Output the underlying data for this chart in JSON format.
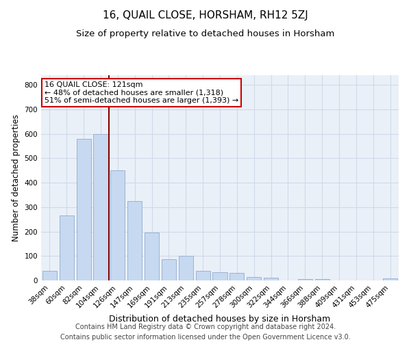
{
  "title": "16, QUAIL CLOSE, HORSHAM, RH12 5ZJ",
  "subtitle": "Size of property relative to detached houses in Horsham",
  "xlabel": "Distribution of detached houses by size in Horsham",
  "ylabel": "Number of detached properties",
  "categories": [
    "38sqm",
    "60sqm",
    "82sqm",
    "104sqm",
    "126sqm",
    "147sqm",
    "169sqm",
    "191sqm",
    "213sqm",
    "235sqm",
    "257sqm",
    "278sqm",
    "300sqm",
    "322sqm",
    "344sqm",
    "366sqm",
    "388sqm",
    "409sqm",
    "431sqm",
    "453sqm",
    "475sqm"
  ],
  "values": [
    38,
    265,
    580,
    600,
    450,
    325,
    195,
    88,
    102,
    38,
    35,
    32,
    13,
    12,
    0,
    7,
    5,
    0,
    0,
    0,
    8
  ],
  "bar_color": "#c6d9f0",
  "bar_edgecolor": "#9ab3d5",
  "vline_color": "#8b0000",
  "vline_index": 4,
  "annotation_line1": "16 QUAIL CLOSE: 121sqm",
  "annotation_line2": "← 48% of detached houses are smaller (1,318)",
  "annotation_line3": "51% of semi-detached houses are larger (1,393) →",
  "annotation_box_facecolor": "#ffffff",
  "annotation_box_edgecolor": "#cc0000",
  "ylim": [
    0,
    840
  ],
  "yticks": [
    0,
    100,
    200,
    300,
    400,
    500,
    600,
    700,
    800
  ],
  "grid_color": "#d0dae8",
  "plot_bg_color": "#eaf0f8",
  "footer_line1": "Contains HM Land Registry data © Crown copyright and database right 2024.",
  "footer_line2": "Contains public sector information licensed under the Open Government Licence v3.0.",
  "title_fontsize": 11,
  "subtitle_fontsize": 9.5,
  "xlabel_fontsize": 9,
  "ylabel_fontsize": 8.5,
  "tick_fontsize": 7.5,
  "annot_fontsize": 8,
  "footer_fontsize": 7
}
